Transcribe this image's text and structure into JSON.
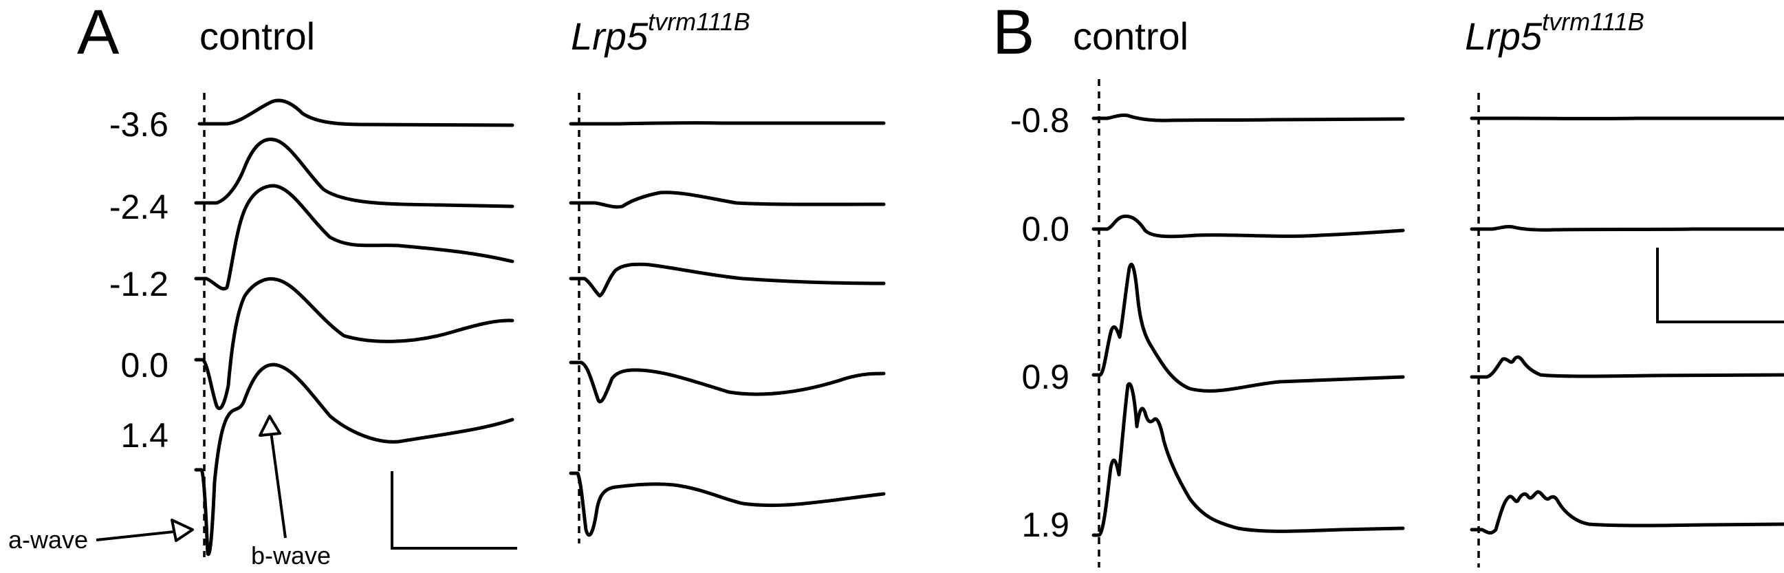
{
  "chart_data": [
    {
      "type": "line",
      "panel": "A",
      "groups": [
        {
          "label": "control",
          "italic": false
        },
        {
          "label": "Lrp5",
          "italic": true,
          "superscript": "tvrm111B"
        }
      ],
      "intensities": [
        "-3.6",
        "-2.4",
        "-1.2",
        "0.0",
        "1.4"
      ],
      "annotations": {
        "a_wave": "a-wave",
        "b_wave": "b-wave"
      }
    },
    {
      "type": "line",
      "panel": "B",
      "groups": [
        {
          "label": "control",
          "italic": false
        },
        {
          "label": "Lrp5",
          "italic": true,
          "superscript": "tvrm111B"
        }
      ],
      "intensities": [
        "-0.8",
        "0.0",
        "0.9",
        "1.9"
      ]
    }
  ]
}
